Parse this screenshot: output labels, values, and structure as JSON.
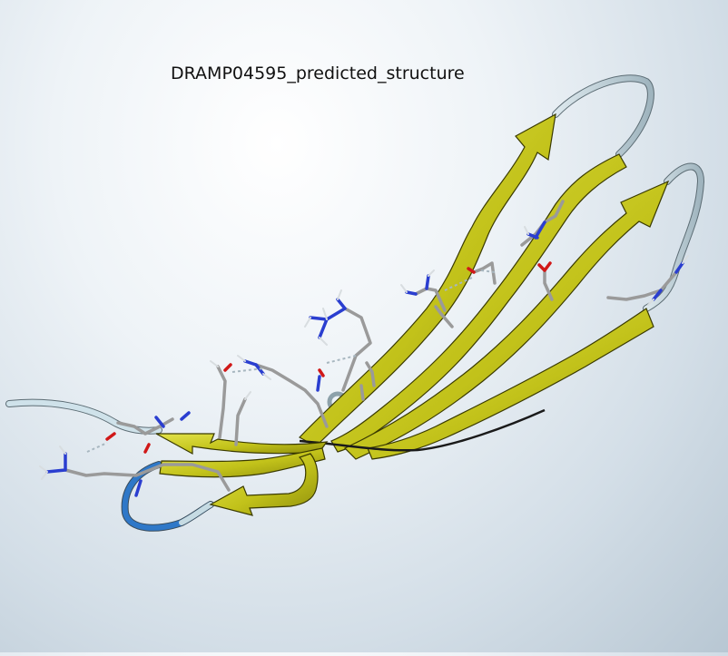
{
  "title": "DRAMP04595_predicted_structure",
  "colors": {
    "strand": "#c8c81a",
    "strand_shadow": "#7d7d10",
    "coil": "#c6dbe3",
    "coil_blue": "#2f78c8",
    "carbon": "#9a9a9a",
    "nitrogen": "#2a3ed0",
    "oxygen": "#d01818",
    "hbond": "#a8b7c0"
  }
}
